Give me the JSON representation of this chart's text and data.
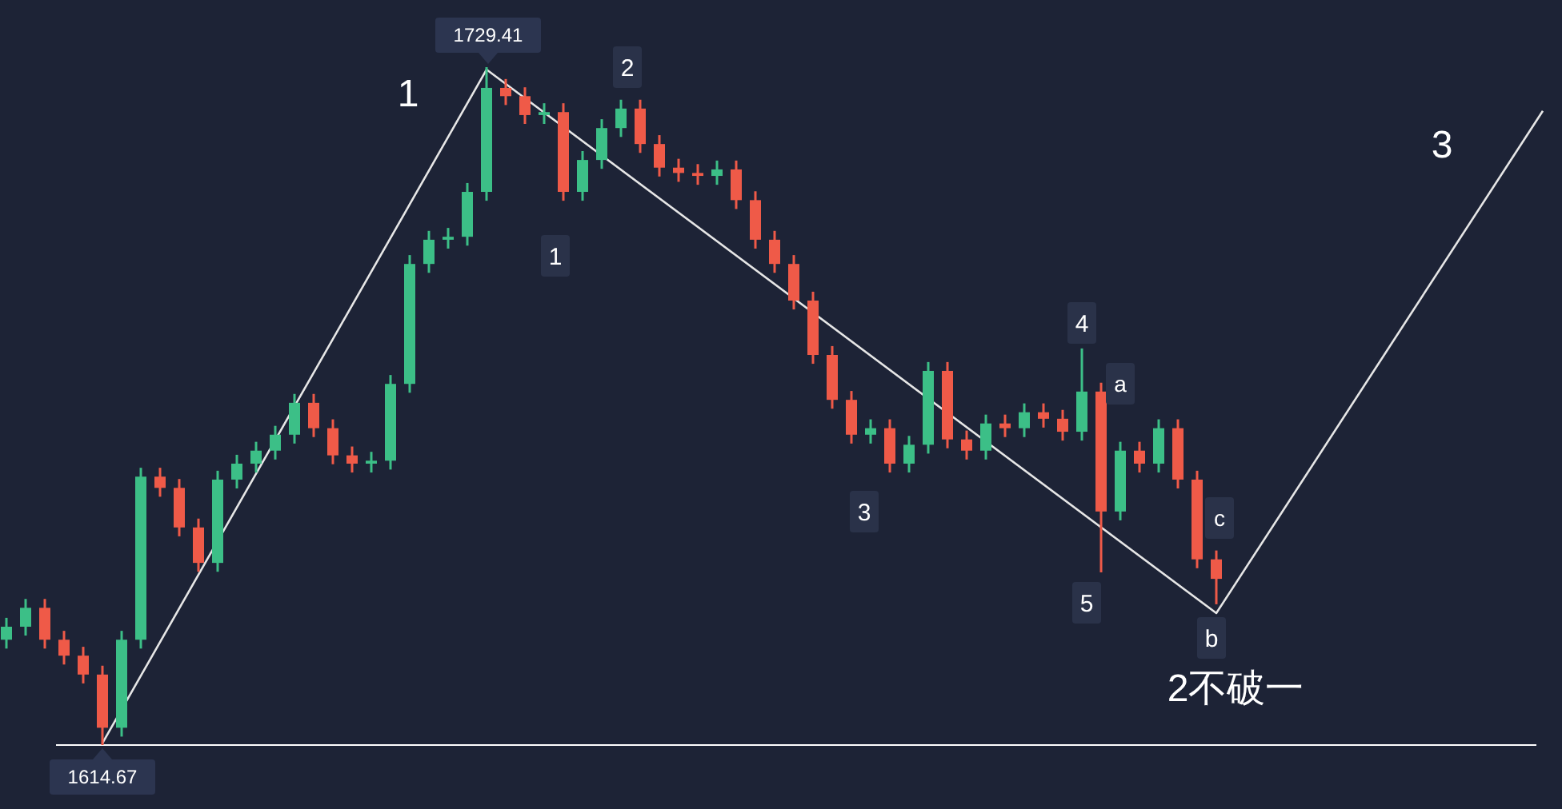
{
  "chart_data": {
    "type": "candlestick",
    "categories": [
      null,
      null,
      null,
      null,
      null,
      null,
      null,
      null,
      null,
      null,
      null,
      null,
      null,
      null,
      null,
      null,
      null,
      null,
      null,
      null,
      null,
      null,
      null,
      null,
      null,
      null,
      null,
      null,
      null,
      null,
      null,
      null,
      null,
      null,
      null,
      null,
      null,
      null,
      null,
      null,
      null,
      null,
      null,
      null,
      null,
      null,
      null,
      null,
      null,
      null,
      null,
      null,
      null,
      null,
      null,
      null,
      null,
      null,
      null,
      null,
      null,
      null,
      null,
      null,
      null,
      null,
      null,
      null,
      null,
      null,
      null,
      null,
      null,
      null,
      null,
      null,
      null,
      null,
      null,
      null,
      null
    ],
    "series": [
      {
        "type": "candlestick",
        "ohlc": [
          [
            1632.5,
            1636.2,
            1631.0,
            1634.7
          ],
          [
            1634.7,
            1639.4,
            1633.2,
            1637.9
          ],
          [
            1637.9,
            1639.4,
            1631.0,
            1632.5
          ],
          [
            1632.5,
            1634.0,
            1628.3,
            1629.8
          ],
          [
            1629.8,
            1631.3,
            1625.1,
            1626.6
          ],
          [
            1626.6,
            1628.1,
            1614.67,
            1617.6
          ],
          [
            1617.6,
            1634.0,
            1616.1,
            1632.5
          ],
          [
            1632.5,
            1661.6,
            1631.0,
            1660.1
          ],
          [
            1660.1,
            1661.6,
            1656.7,
            1658.2
          ],
          [
            1658.2,
            1659.7,
            1650.0,
            1651.5
          ],
          [
            1651.5,
            1653.0,
            1644.0,
            1645.5
          ],
          [
            1645.5,
            1661.1,
            1644.0,
            1659.6
          ],
          [
            1659.6,
            1663.8,
            1658.1,
            1662.3
          ],
          [
            1662.3,
            1666.0,
            1660.8,
            1664.5
          ],
          [
            1664.5,
            1668.7,
            1663.0,
            1667.2
          ],
          [
            1667.2,
            1674.1,
            1665.7,
            1672.6
          ],
          [
            1672.6,
            1674.1,
            1666.8,
            1668.3
          ],
          [
            1668.3,
            1669.8,
            1662.2,
            1663.7
          ],
          [
            1663.7,
            1665.2,
            1660.8,
            1662.3
          ],
          [
            1662.3,
            1664.3,
            1660.8,
            1662.8
          ],
          [
            1662.8,
            1677.3,
            1661.3,
            1675.8
          ],
          [
            1675.8,
            1697.6,
            1674.3,
            1696.1
          ],
          [
            1696.1,
            1701.7,
            1694.6,
            1700.2
          ],
          [
            1700.2,
            1702.2,
            1698.7,
            1700.7
          ],
          [
            1700.7,
            1709.8,
            1699.2,
            1708.3
          ],
          [
            1708.3,
            1729.41,
            1706.8,
            1725.9
          ],
          [
            1725.9,
            1727.4,
            1723.0,
            1724.5
          ],
          [
            1724.5,
            1726.0,
            1719.8,
            1721.3
          ],
          [
            1721.3,
            1723.3,
            1719.8,
            1721.8
          ],
          [
            1721.8,
            1723.3,
            1706.8,
            1708.3
          ],
          [
            1708.3,
            1715.2,
            1706.8,
            1713.7
          ],
          [
            1713.7,
            1720.6,
            1712.2,
            1719.1
          ],
          [
            1719.1,
            1723.9,
            1717.6,
            1722.4
          ],
          [
            1722.4,
            1723.9,
            1714.9,
            1716.4
          ],
          [
            1716.4,
            1717.9,
            1710.9,
            1712.4
          ],
          [
            1712.4,
            1713.9,
            1710.0,
            1711.5
          ],
          [
            1711.5,
            1713.0,
            1709.5,
            1711.0
          ],
          [
            1711.0,
            1713.6,
            1709.5,
            1712.1
          ],
          [
            1712.1,
            1713.6,
            1705.4,
            1706.9
          ],
          [
            1706.9,
            1708.4,
            1698.7,
            1700.2
          ],
          [
            1700.2,
            1701.7,
            1694.6,
            1696.1
          ],
          [
            1696.1,
            1697.6,
            1688.4,
            1689.9
          ],
          [
            1689.9,
            1691.4,
            1679.2,
            1680.7
          ],
          [
            1680.7,
            1682.2,
            1671.6,
            1673.1
          ],
          [
            1673.1,
            1674.6,
            1665.7,
            1667.2
          ],
          [
            1667.2,
            1669.8,
            1665.7,
            1668.3
          ],
          [
            1668.3,
            1669.8,
            1660.8,
            1662.3
          ],
          [
            1662.3,
            1667.0,
            1660.8,
            1665.5
          ],
          [
            1665.5,
            1679.5,
            1664.0,
            1678.0
          ],
          [
            1678.0,
            1679.5,
            1664.9,
            1666.4
          ],
          [
            1666.4,
            1667.9,
            1663.0,
            1664.5
          ],
          [
            1664.5,
            1670.6,
            1663.0,
            1669.1
          ],
          [
            1669.1,
            1670.6,
            1666.8,
            1668.3
          ],
          [
            1668.3,
            1672.5,
            1666.8,
            1671.0
          ],
          [
            1671.0,
            1672.5,
            1668.4,
            1669.9
          ],
          [
            1669.9,
            1671.4,
            1666.2,
            1667.7
          ],
          [
            1667.7,
            1681.8,
            1666.2,
            1674.5
          ],
          [
            1674.5,
            1676.0,
            1643.9,
            1654.2
          ],
          [
            1654.2,
            1666.0,
            1652.7,
            1664.5
          ],
          [
            1664.5,
            1666.0,
            1660.8,
            1662.3
          ],
          [
            1662.3,
            1669.8,
            1660.8,
            1668.3
          ],
          [
            1668.3,
            1669.8,
            1658.1,
            1659.6
          ],
          [
            1659.6,
            1661.1,
            1644.6,
            1646.1
          ],
          [
            1646.1,
            1647.6,
            1638.5,
            1642.8
          ],
          null,
          null,
          null,
          null,
          null,
          null,
          null,
          null,
          null,
          null,
          null,
          null,
          null,
          null,
          null,
          null,
          null
        ],
        "colors": [
          "#3cbf87",
          "#3cbf87",
          "#ef5a48",
          "#ef5a48",
          "#ef5a48",
          "#ef5a48",
          "#3cbf87",
          "#3cbf87",
          "#ef5a48",
          "#ef5a48",
          "#ef5a48",
          "#3cbf87",
          "#3cbf87",
          "#3cbf87",
          "#3cbf87",
          "#3cbf87",
          "#ef5a48",
          "#ef5a48",
          "#ef5a48",
          "#3cbf87",
          "#3cbf87",
          "#3cbf87",
          "#3cbf87",
          "#3cbf87",
          "#3cbf87",
          "#3cbf87",
          "#ef5a48",
          "#ef5a48",
          "#3cbf87",
          "#ef5a48",
          "#3cbf87",
          "#3cbf87",
          "#3cbf87",
          "#ef5a48",
          "#ef5a48",
          "#ef5a48",
          "#ef5a48",
          "#3cbf87",
          "#ef5a48",
          "#ef5a48",
          "#ef5a48",
          "#ef5a48",
          "#ef5a48",
          "#ef5a48",
          "#ef5a48",
          "#3cbf87",
          "#ef5a48",
          "#3cbf87",
          "#3cbf87",
          "#ef5a48",
          "#ef5a48",
          "#3cbf87",
          "#ef5a48",
          "#3cbf87",
          "#ef5a48",
          "#ef5a48",
          "#3cbf87",
          "#ef5a48",
          "#3cbf87",
          "#ef5a48",
          "#3cbf87",
          "#ef5a48",
          "#ef5a48",
          "#ef5a48",
          null,
          null,
          null,
          null,
          null,
          null,
          null,
          null,
          null,
          null,
          null,
          null,
          null,
          null,
          null,
          null,
          null
        ]
      },
      {
        "type": "line",
        "color": "#e6e6e6",
        "values": [
          null,
          null,
          null,
          null,
          null,
          1615,
          null,
          null,
          null,
          null,
          null,
          null,
          null,
          null,
          null,
          null,
          null,
          null,
          null,
          null,
          null,
          null,
          null,
          null,
          null,
          1729,
          null,
          null,
          null,
          null,
          null,
          null,
          null,
          null,
          null,
          null,
          null,
          null,
          null,
          null,
          null,
          null,
          null,
          null,
          null,
          null,
          null,
          null,
          null,
          null,
          null,
          null,
          null,
          null,
          null,
          null,
          null,
          null,
          null,
          null,
          null,
          null,
          null,
          1637,
          null,
          null,
          null,
          null,
          null,
          null,
          null,
          null,
          null,
          null,
          null,
          null,
          null,
          null,
          null,
          null,
          1722
        ]
      }
    ],
    "ref_lines": [
      {
        "axis": "y",
        "value": 1614.67,
        "color": "#ffffff"
      }
    ],
    "annotations": [
      {
        "text": "1729.41",
        "y": 1729.41
      },
      {
        "text": "1614.67",
        "y": 1614.67
      },
      "1",
      "2",
      "1",
      "3",
      "4",
      "5",
      "a",
      "b",
      "c",
      "3",
      "2不破一"
    ]
  }
}
